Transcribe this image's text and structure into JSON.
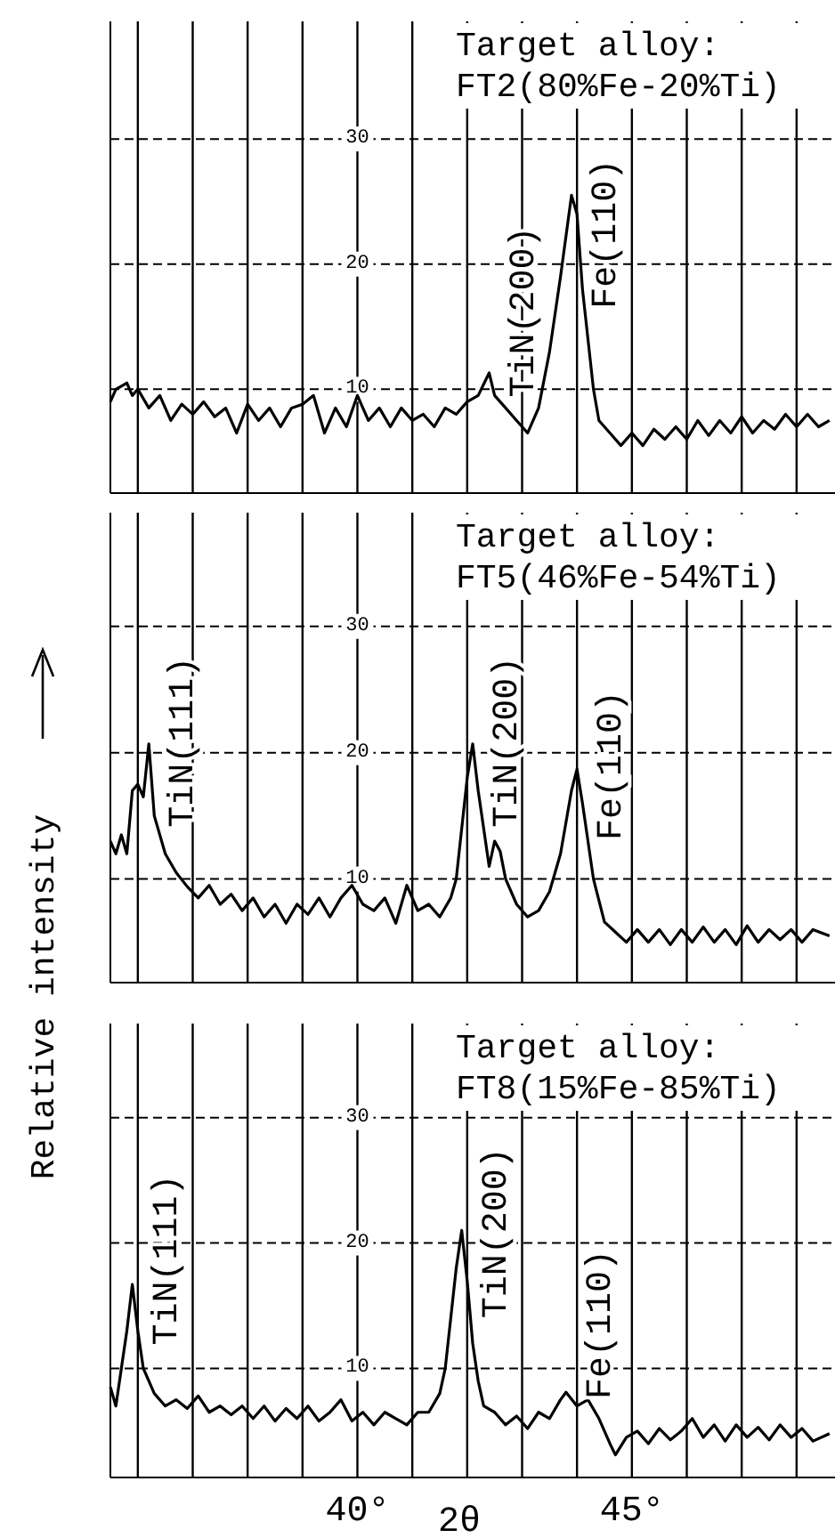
{
  "chart_data": [
    {
      "type": "line",
      "title": "Target alloy:",
      "subtitle": "FT2(80%Fe-20%Ti)",
      "xlim": [
        35.5,
        48.7
      ],
      "ylim": [
        1.7,
        39.4
      ],
      "yticks": [
        10,
        20,
        30
      ],
      "xticks": [
        {
          "value": 36,
          "label": null
        },
        {
          "value": 37,
          "label": null
        },
        {
          "value": 38,
          "label": null
        },
        {
          "value": 39,
          "label": null
        },
        {
          "value": 40,
          "label": null
        },
        {
          "value": 41,
          "label": null
        },
        {
          "value": 42,
          "label": null
        },
        {
          "value": 43,
          "label": null
        },
        {
          "value": 44,
          "label": null
        },
        {
          "value": 45,
          "label": null
        },
        {
          "value": 46,
          "label": null
        },
        {
          "value": 47,
          "label": null
        },
        {
          "value": 48,
          "label": null
        }
      ],
      "tick_labels": "y",
      "grid": true,
      "marker": "none",
      "line_style": "solid",
      "annotations": [
        {
          "text": "TiN(200)",
          "x": 42.4,
          "y": 11.3
        },
        {
          "text": "Fe(110)",
          "x": 43.9,
          "y": 25.5
        }
      ],
      "series": [
        {
          "color": "#000000",
          "x": [
            35.5,
            35.6,
            35.8,
            35.9,
            36.0,
            36.2,
            36.4,
            36.6,
            36.8,
            37.0,
            37.2,
            37.4,
            37.6,
            37.8,
            38.0,
            38.2,
            38.4,
            38.6,
            38.8,
            39.0,
            39.2,
            39.4,
            39.6,
            39.8,
            40.0,
            40.2,
            40.4,
            40.6,
            40.8,
            41.0,
            41.2,
            41.4,
            41.6,
            41.8,
            42.0,
            42.2,
            42.4,
            42.5,
            42.7,
            42.9,
            43.1,
            43.3,
            43.5,
            43.7,
            43.9,
            44.0,
            44.1,
            44.3,
            44.4,
            44.6,
            44.8,
            45.0,
            45.2,
            45.4,
            45.6,
            45.8,
            46.0,
            46.2,
            46.4,
            46.6,
            46.8,
            47.0,
            47.2,
            47.4,
            47.6,
            47.8,
            48.0,
            48.2,
            48.4,
            48.6
          ],
          "values": [
            9,
            10,
            10.5,
            9.5,
            10,
            8.5,
            9.5,
            7.5,
            8.8,
            8,
            9,
            7.8,
            8.5,
            6.5,
            8.8,
            7.5,
            8.5,
            7,
            8.5,
            8.8,
            9.5,
            6.5,
            8.5,
            7,
            9.5,
            7.5,
            8.5,
            7,
            8.5,
            7.5,
            8,
            7,
            8.5,
            8,
            9,
            9.5,
            11.3,
            9.5,
            8.5,
            7.5,
            6.5,
            8.5,
            13,
            19,
            25.5,
            24,
            18,
            10,
            7.5,
            6.5,
            5.5,
            6.5,
            5.5,
            6.8,
            6,
            7,
            6,
            7.5,
            6.3,
            7.5,
            6.5,
            7.8,
            6.5,
            7.5,
            6.8,
            8,
            7,
            8,
            7,
            7.5
          ]
        }
      ]
    },
    {
      "type": "line",
      "title": "Target alloy:",
      "subtitle": "FT5(46%Fe-54%Ti)",
      "ylabel": "Relative intensity",
      "xlim": [
        35.5,
        48.7
      ],
      "ylim": [
        1.8,
        39
      ],
      "yticks": [
        10,
        20,
        30
      ],
      "xticks": [
        {
          "value": 36,
          "label": null
        },
        {
          "value": 37,
          "label": null
        },
        {
          "value": 38,
          "label": null
        },
        {
          "value": 39,
          "label": null
        },
        {
          "value": 40,
          "label": null
        },
        {
          "value": 41,
          "label": null
        },
        {
          "value": 42,
          "label": null
        },
        {
          "value": 43,
          "label": null
        },
        {
          "value": 44,
          "label": null
        },
        {
          "value": 45,
          "label": null
        },
        {
          "value": 46,
          "label": null
        },
        {
          "value": 47,
          "label": null
        },
        {
          "value": 48,
          "label": null
        }
      ],
      "tick_labels": "y",
      "grid": true,
      "marker": "none",
      "line_style": "solid",
      "annotations": [
        {
          "text": "TiN(111)",
          "x": 36.2,
          "y": 20.7
        },
        {
          "text": "TiN(200)",
          "x": 42.1,
          "y": 20.7
        },
        {
          "text": "Fe(110)",
          "x": 44.0,
          "y": 18.7
        }
      ],
      "series": [
        {
          "color": "#000000",
          "x": [
            35.5,
            35.6,
            35.7,
            35.8,
            35.9,
            36.0,
            36.1,
            36.2,
            36.3,
            36.5,
            36.7,
            36.9,
            37.1,
            37.3,
            37.5,
            37.7,
            37.9,
            38.1,
            38.3,
            38.5,
            38.7,
            38.9,
            39.1,
            39.3,
            39.5,
            39.7,
            39.9,
            40.1,
            40.3,
            40.5,
            40.7,
            40.9,
            41.1,
            41.3,
            41.5,
            41.7,
            41.8,
            41.9,
            42.0,
            42.1,
            42.2,
            42.3,
            42.4,
            42.5,
            42.6,
            42.7,
            42.9,
            43.1,
            43.3,
            43.5,
            43.7,
            43.9,
            44.0,
            44.1,
            44.3,
            44.5,
            44.7,
            44.9,
            45.1,
            45.3,
            45.5,
            45.7,
            45.9,
            46.1,
            46.3,
            46.5,
            46.7,
            46.9,
            47.1,
            47.3,
            47.5,
            47.7,
            47.9,
            48.1,
            48.3,
            48.6
          ],
          "values": [
            13,
            12,
            13.5,
            12,
            17,
            17.5,
            16.5,
            20.7,
            15,
            12,
            10.5,
            9.4,
            8.5,
            9.5,
            8,
            8.8,
            7.5,
            8.5,
            7,
            8,
            6.5,
            8,
            7.2,
            8.5,
            7,
            8.5,
            9.5,
            8,
            7.5,
            8.5,
            6.5,
            9.5,
            7.5,
            8,
            7,
            8.5,
            10,
            14,
            18,
            20.7,
            17,
            14,
            11,
            13,
            12.2,
            10,
            8,
            7,
            7.5,
            9,
            12,
            17,
            18.7,
            16,
            10,
            6.6,
            5.8,
            5,
            6,
            5,
            6,
            4.8,
            6,
            5,
            6.2,
            5,
            6,
            4.8,
            6.3,
            5,
            6,
            5.2,
            6,
            5,
            6,
            5.5
          ]
        }
      ]
    },
    {
      "type": "line",
      "title": "Target alloy:",
      "subtitle": "FT8(15%Fe-85%Ti)",
      "xlabel": "2θ",
      "xlim": [
        35.5,
        48.7
      ],
      "ylim": [
        1.3,
        37.5
      ],
      "yticks": [
        10,
        20,
        30
      ],
      "xticks": [
        {
          "value": 36,
          "label": null
        },
        {
          "value": 37,
          "label": null
        },
        {
          "value": 38,
          "label": null
        },
        {
          "value": 39,
          "label": null
        },
        {
          "value": 40,
          "label": "40°"
        },
        {
          "value": 41,
          "label": null
        },
        {
          "value": 42,
          "label": null
        },
        {
          "value": 43,
          "label": null
        },
        {
          "value": 44,
          "label": null
        },
        {
          "value": 45,
          "label": "45°"
        },
        {
          "value": 46,
          "label": null
        },
        {
          "value": 47,
          "label": null
        },
        {
          "value": 48,
          "label": null
        }
      ],
      "grid": true,
      "marker": "none",
      "line_style": "solid",
      "annotations": [
        {
          "text": "TiN(111)",
          "x": 35.9,
          "y": 16.7
        },
        {
          "text": "TiN(200)",
          "x": 41.9,
          "y": 21
        },
        {
          "text": "Fe(110)",
          "x": 43.8,
          "y": 8.1
        }
      ],
      "series": [
        {
          "color": "#000000",
          "x": [
            35.5,
            35.6,
            35.7,
            35.8,
            35.9,
            36.0,
            36.1,
            36.3,
            36.5,
            36.7,
            36.9,
            37.1,
            37.3,
            37.5,
            37.7,
            37.9,
            38.1,
            38.3,
            38.5,
            38.7,
            38.9,
            39.1,
            39.3,
            39.5,
            39.7,
            39.9,
            40.1,
            40.3,
            40.5,
            40.7,
            40.9,
            41.1,
            41.3,
            41.5,
            41.6,
            41.7,
            41.8,
            41.9,
            42.0,
            42.1,
            42.2,
            42.3,
            42.5,
            42.7,
            42.9,
            43.1,
            43.3,
            43.5,
            43.7,
            43.8,
            44.0,
            44.2,
            44.4,
            44.6,
            44.7,
            44.9,
            45.1,
            45.3,
            45.5,
            45.7,
            45.9,
            46.1,
            46.3,
            46.5,
            46.7,
            46.9,
            47.1,
            47.3,
            47.5,
            47.7,
            47.9,
            48.1,
            48.3,
            48.6
          ],
          "values": [
            8.5,
            7,
            10,
            13,
            16.7,
            13,
            10,
            8,
            7,
            7.5,
            6.8,
            7.8,
            6.5,
            7,
            6.3,
            7,
            6,
            7,
            5.8,
            6.8,
            6,
            7,
            5.8,
            6.5,
            7.5,
            5.8,
            6.5,
            5.5,
            6.5,
            6,
            5.5,
            6.5,
            6.5,
            8,
            10,
            14,
            18,
            21,
            17,
            12,
            9,
            7,
            6.5,
            5.5,
            6.2,
            5.2,
            6.5,
            6,
            7.5,
            8.1,
            7,
            7.5,
            6,
            4,
            3.1,
            4.5,
            5,
            4,
            5.2,
            4.3,
            5,
            6,
            4.5,
            5.5,
            4.2,
            5.5,
            4.5,
            5.3,
            4.3,
            5.5,
            4.5,
            5.2,
            4.2,
            4.8
          ]
        }
      ]
    }
  ]
}
